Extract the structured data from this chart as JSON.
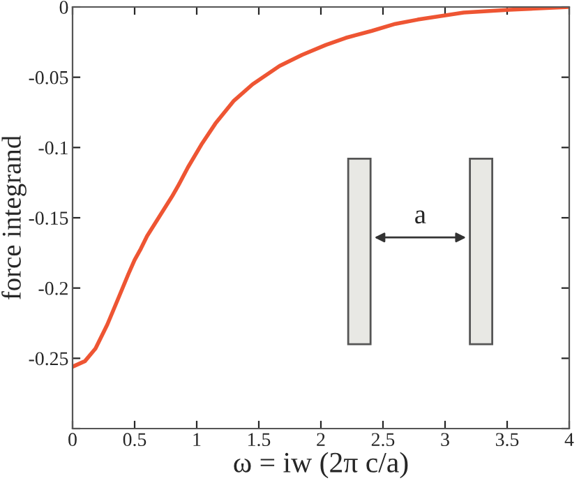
{
  "chart_data": {
    "type": "line",
    "xlabel": "ω = iw (2π c/a)",
    "ylabel": "force integrand",
    "x": [
      0,
      0.1,
      0.185,
      0.28,
      0.37,
      0.45,
      0.5,
      0.55,
      0.6,
      0.7,
      0.8,
      0.852,
      0.93,
      1.037,
      1.15,
      1.296,
      1.45,
      1.667,
      1.85,
      2.04,
      2.2,
      2.41,
      2.6,
      2.78,
      3.15,
      3.52,
      4
    ],
    "series": [
      {
        "color": "#ee5533",
        "values": [
          -0.256,
          -0.252,
          -0.243,
          -0.226,
          -0.207,
          -0.19,
          -0.18,
          -0.172,
          -0.163,
          -0.149,
          -0.135,
          -0.127,
          -0.114,
          -0.098,
          -0.083,
          -0.067,
          -0.055,
          -0.042,
          -0.034,
          -0.027,
          -0.022,
          -0.017,
          -0.012,
          -0.009,
          -0.004,
          -0.002,
          0
        ]
      }
    ],
    "xlim": [
      0,
      4
    ],
    "ylim": [
      -0.3,
      0
    ],
    "xticks": [
      0,
      0.5,
      1,
      1.5,
      2,
      2.5,
      3,
      3.5,
      4
    ],
    "yticks": [
      {
        "value": -0.3,
        "label": null
      },
      -0.25,
      -0.2,
      -0.15,
      -0.1,
      -0.05,
      0
    ],
    "annotations": [
      "a"
    ],
    "grid": false,
    "legend": false,
    "marker": "none",
    "line_style": "solid"
  }
}
